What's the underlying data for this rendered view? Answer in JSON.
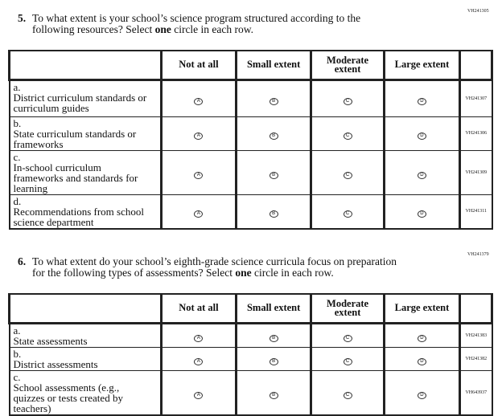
{
  "q5": {
    "code": "VH241305",
    "number": "5.",
    "text1": "To what extent is your school’s science program structured according to the",
    "text2a": "following resources? Select ",
    "text2b": "one",
    "text2c": " circle in each row.",
    "columns": [
      "Not at all",
      "Small extent",
      "Moderate extent",
      "Large extent"
    ],
    "rows": [
      {
        "letter": "a.",
        "label": "District curriculum standards or curriculum guides",
        "code": "VH241307"
      },
      {
        "letter": "b.",
        "label": "State curriculum standards or frameworks",
        "code": "VH241306"
      },
      {
        "letter": "c.",
        "label": "In-school curriculum frameworks and standards for learning",
        "code": "VH241309"
      },
      {
        "letter": "d.",
        "label": "Recommendations from school science department",
        "code": "VH241311"
      }
    ]
  },
  "q6": {
    "code": "VH241379",
    "number": "6.",
    "text1": "To what extent do your school’s eighth-grade science curricula focus on preparation",
    "text2a": "for the following types of assessments? Select ",
    "text2b": "one",
    "text2c": " circle in each row.",
    "columns": [
      "Not at all",
      "Small extent",
      "Moderate extent",
      "Large extent"
    ],
    "rows": [
      {
        "letter": "a.",
        "label": "State assessments",
        "code": "VH241383"
      },
      {
        "letter": "b.",
        "label": "District assessments",
        "code": "VH241382"
      },
      {
        "letter": "c.",
        "label": "School assessments (e.g., quizzes or tests created by teachers)",
        "code": "VH643937"
      }
    ]
  },
  "bubbles": [
    "A",
    "B",
    "C",
    "D"
  ]
}
